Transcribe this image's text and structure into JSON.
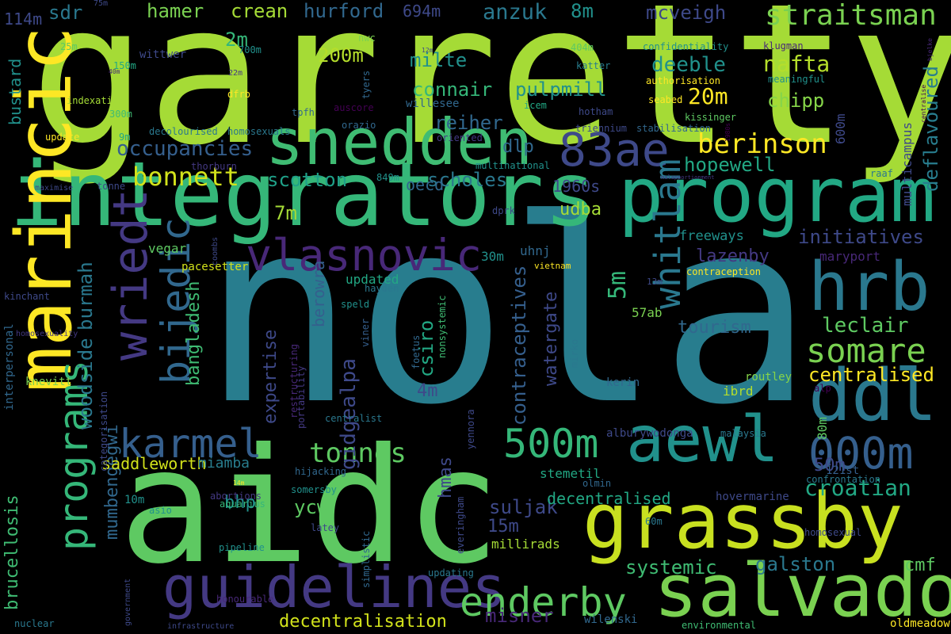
{
  "words": [
    {
      "text": "garretty",
      "color": "#a5db36"
    },
    {
      "text": "nola",
      "color": "#287d8e"
    },
    {
      "text": "aidc",
      "color": "#5ec962"
    },
    {
      "text": "integrators",
      "color": "#35b779"
    },
    {
      "text": "program",
      "color": "#22a884"
    },
    {
      "text": "marincic",
      "color": "#fde725"
    },
    {
      "text": "snedden",
      "color": "#3fbc73"
    },
    {
      "text": "grassby",
      "color": "#c8e020"
    },
    {
      "text": "salvado",
      "color": "#7ad151"
    },
    {
      "text": "hrb",
      "color": "#2a788e"
    },
    {
      "text": "ddl",
      "color": "#2a788e"
    },
    {
      "text": "aewl",
      "color": "#21918c"
    },
    {
      "text": "guidelines",
      "color": "#443983"
    },
    {
      "text": "enderby",
      "color": "#5ec962"
    },
    {
      "text": "83ae",
      "color": "#3e4989"
    },
    {
      "text": "vlasnovic",
      "color": "#482878"
    },
    {
      "text": "wriedt",
      "color": "#443983"
    },
    {
      "text": "bijedic",
      "color": "#31688e"
    },
    {
      "text": "programs",
      "color": "#35b779"
    },
    {
      "text": "karmel",
      "color": "#355f8d"
    },
    {
      "text": "500m",
      "color": "#35b779"
    },
    {
      "text": "000m",
      "color": "#355f8d"
    },
    {
      "text": "somare",
      "color": "#7ad151"
    },
    {
      "text": "whitlam",
      "color": "#2a788e"
    },
    {
      "text": "straitsman",
      "color": "#7ad151"
    },
    {
      "text": "berinson",
      "color": "#fde725"
    },
    {
      "text": "bonnett",
      "color": "#d2e21b"
    },
    {
      "text": "tonnes",
      "color": "#5ec962"
    },
    {
      "text": "croatian",
      "color": "#22a884"
    },
    {
      "text": "hurford",
      "color": "#31688e"
    },
    {
      "text": "hamer",
      "color": "#7ad151"
    },
    {
      "text": "crean",
      "color": "#a5db36"
    },
    {
      "text": "anzuk",
      "color": "#2a788e"
    },
    {
      "text": "sdr",
      "color": "#2a788e"
    },
    {
      "text": "114m",
      "color": "#3e4989"
    },
    {
      "text": "694m",
      "color": "#3e4989"
    },
    {
      "text": "8m",
      "color": "#21918c"
    },
    {
      "text": "mcveigh",
      "color": "#3e4989"
    },
    {
      "text": "2m",
      "color": "#35b779"
    },
    {
      "text": "200m",
      "color": "#b5de2b"
    },
    {
      "text": "milte",
      "color": "#21918c"
    },
    {
      "text": "deeble",
      "color": "#21918c"
    },
    {
      "text": "nafta",
      "color": "#b5de2b"
    },
    {
      "text": "chipp",
      "color": "#86d549"
    },
    {
      "text": "20m",
      "color": "#fde725"
    },
    {
      "text": "pulpmill",
      "color": "#21918c"
    },
    {
      "text": "connair",
      "color": "#35b779"
    },
    {
      "text": "reiher",
      "color": "#31688e"
    },
    {
      "text": "occupancies",
      "color": "#355f8d"
    },
    {
      "text": "dlp",
      "color": "#31688e"
    },
    {
      "text": "hopewell",
      "color": "#22a884"
    },
    {
      "text": "scotton",
      "color": "#1fa088"
    },
    {
      "text": "scholes",
      "color": "#2a788e"
    },
    {
      "text": "oecd",
      "color": "#31688e"
    },
    {
      "text": "1960s",
      "color": "#3e4989"
    },
    {
      "text": "udba",
      "color": "#a5db36"
    },
    {
      "text": "initiatives",
      "color": "#3e4989"
    },
    {
      "text": "deflavoured",
      "color": "#287d8e"
    },
    {
      "text": "lazenby",
      "color": "#443983"
    },
    {
      "text": "7m",
      "color": "#a5db36"
    },
    {
      "text": "5m",
      "color": "#35b779"
    },
    {
      "text": "leclair",
      "color": "#5ec962"
    },
    {
      "text": "tourism",
      "color": "#31688e"
    },
    {
      "text": "centralised",
      "color": "#fde725"
    },
    {
      "text": "bangladesh",
      "color": "#3fbc73"
    },
    {
      "text": "burmah",
      "color": "#2a788e"
    },
    {
      "text": "woodside",
      "color": "#2a788e"
    },
    {
      "text": "contraceptives",
      "color": "#355f8d"
    },
    {
      "text": "watergate",
      "color": "#3e4989"
    },
    {
      "text": "expertise",
      "color": "#3e4989"
    },
    {
      "text": "gidgealpa",
      "color": "#3e4989"
    },
    {
      "text": "csiro",
      "color": "#22a884"
    },
    {
      "text": "4m",
      "color": "#3e4989"
    },
    {
      "text": "mumbengegwi",
      "color": "#31688e"
    },
    {
      "text": "saddleworth",
      "color": "#d2e21b"
    },
    {
      "text": "miamba",
      "color": "#287d8e"
    },
    {
      "text": "hmas",
      "color": "#3e4989"
    },
    {
      "text": "ycw",
      "color": "#5ec962"
    },
    {
      "text": "bhp",
      "color": "#21918c"
    },
    {
      "text": "suljak",
      "color": "#3e4989"
    },
    {
      "text": "15m",
      "color": "#3e4989"
    },
    {
      "text": "decentralised",
      "color": "#22a884"
    },
    {
      "text": "50m",
      "color": "#3e4989"
    },
    {
      "text": "cmf",
      "color": "#5ec962"
    },
    {
      "text": "galston",
      "color": "#2a788e"
    },
    {
      "text": "systemic",
      "color": "#3fbc73"
    },
    {
      "text": "decentralisation",
      "color": "#d2e21b"
    },
    {
      "text": "misner",
      "color": "#482878"
    },
    {
      "text": "oldmeadow",
      "color": "#fde725"
    },
    {
      "text": "brucellosis",
      "color": "#3fbc73"
    },
    {
      "text": "bustard",
      "color": "#21918c"
    },
    {
      "text": "berowra",
      "color": "#355f8d"
    },
    {
      "text": "multicampus",
      "color": "#3e4989"
    },
    {
      "text": "600m",
      "color": "#3e4989"
    },
    {
      "text": "vegar",
      "color": "#5ec962"
    },
    {
      "text": "pacesetter",
      "color": "#d2e21b"
    },
    {
      "text": "freeways",
      "color": "#21918c"
    },
    {
      "text": "maryport",
      "color": "#482878"
    },
    {
      "text": "updated",
      "color": "#22a884"
    },
    {
      "text": "uhnj",
      "color": "#31688e"
    },
    {
      "text": "30m",
      "color": "#21918c"
    },
    {
      "text": "vietnam",
      "color": "#fde725"
    },
    {
      "text": "57ab",
      "color": "#7ad151"
    },
    {
      "text": "routley",
      "color": "#86d549"
    },
    {
      "text": "ibrd",
      "color": "#b5de2b"
    },
    {
      "text": "kerin",
      "color": "#31688e"
    },
    {
      "text": "alp",
      "color": "#440154"
    },
    {
      "text": "80m",
      "color": "#5ec962"
    },
    {
      "text": "121st",
      "color": "#355f8d"
    },
    {
      "text": "malaysia",
      "color": "#2a788e"
    },
    {
      "text": "alburywodonga",
      "color": "#3e4989"
    },
    {
      "text": "stemetil",
      "color": "#22a884"
    },
    {
      "text": "10m",
      "color": "#21918c"
    },
    {
      "text": "hovermarine",
      "color": "#3e4989"
    },
    {
      "text": "confrontation",
      "color": "#2a788e"
    },
    {
      "text": "millirads",
      "color": "#a5db36"
    },
    {
      "text": "interpersonal",
      "color": "#31688e"
    },
    {
      "text": "knevitt",
      "color": "#7ad151"
    },
    {
      "text": "homosexuality",
      "color": "#443983"
    },
    {
      "text": "kinchant",
      "color": "#3e4989"
    },
    {
      "text": "categorisation",
      "color": "#3e4989"
    },
    {
      "text": "update",
      "color": "#fde725"
    },
    {
      "text": "9m",
      "color": "#22a884"
    },
    {
      "text": "300m",
      "color": "#3fbc73"
    },
    {
      "text": "indexation",
      "color": "#a5db36"
    },
    {
      "text": "dfrb",
      "color": "#fde725"
    },
    {
      "text": "decolourised",
      "color": "#2a788e"
    },
    {
      "text": "homosexuals",
      "color": "#2a788e"
    },
    {
      "text": "thorburn",
      "color": "#443983"
    },
    {
      "text": "tonne",
      "color": "#3e4989"
    },
    {
      "text": "maximise",
      "color": "#3e4989"
    },
    {
      "text": "849m",
      "color": "#21918c"
    },
    {
      "text": "multinational",
      "color": "#21918c"
    },
    {
      "text": "tpfh",
      "color": "#31688e"
    },
    {
      "text": "auscore",
      "color": "#440154"
    },
    {
      "text": "tyers",
      "color": "#31688e"
    },
    {
      "text": "orazio",
      "color": "#31688e"
    },
    {
      "text": "oriented",
      "color": "#443983"
    },
    {
      "text": "willesee",
      "color": "#31688e"
    },
    {
      "text": "icem",
      "color": "#22a884"
    },
    {
      "text": "hotham",
      "color": "#3e4989"
    },
    {
      "text": "triennium",
      "color": "#3e4989"
    },
    {
      "text": "stabilisation",
      "color": "#31688e"
    },
    {
      "text": "kissinger",
      "color": "#5ec962"
    },
    {
      "text": "seabed",
      "color": "#fde725"
    },
    {
      "text": "authorisation",
      "color": "#fde725"
    },
    {
      "text": "meaningful",
      "color": "#21918c"
    },
    {
      "text": "confidentiality",
      "color": "#21918c"
    },
    {
      "text": "klugman",
      "color": "#482878"
    },
    {
      "text": "katter",
      "color": "#287d8e"
    },
    {
      "text": "404m",
      "color": "#5ec962"
    },
    {
      "text": "12m",
      "color": "#3e4989"
    },
    {
      "text": "700m",
      "color": "#21918c"
    },
    {
      "text": "nwc",
      "color": "#7ad151"
    },
    {
      "text": "150m",
      "color": "#22a884"
    },
    {
      "text": "40m",
      "color": "#482878"
    },
    {
      "text": "22m",
      "color": "#443983"
    },
    {
      "text": "wittwer",
      "color": "#3e4989"
    },
    {
      "text": "25m",
      "color": "#5ec962"
    },
    {
      "text": "75m",
      "color": "#3e4989"
    },
    {
      "text": "13m",
      "color": "#3e4989"
    },
    {
      "text": "dprk",
      "color": "#3e4989"
    },
    {
      "text": "coombs",
      "color": "#3e4989"
    },
    {
      "text": "contraception",
      "color": "#fde725"
    },
    {
      "text": "malapportionment",
      "color": "#443983"
    },
    {
      "text": "raaf",
      "color": "#2a788e"
    },
    {
      "text": "1980s",
      "color": "#440154"
    },
    {
      "text": "centralise",
      "color": "#440154"
    },
    {
      "text": "hayden",
      "color": "#2a788e"
    },
    {
      "text": "speld",
      "color": "#21918c"
    },
    {
      "text": "nonsystemic",
      "color": "#3fbc73"
    },
    {
      "text": "foetus",
      "color": "#31688e"
    },
    {
      "text": "viner",
      "color": "#355f8d"
    },
    {
      "text": "restructuring",
      "color": "#482878"
    },
    {
      "text": "portability",
      "color": "#443983"
    },
    {
      "text": "mirko",
      "color": "#2a788e"
    },
    {
      "text": "centralist",
      "color": "#2a788e"
    },
    {
      "text": "yennora",
      "color": "#3e4989"
    },
    {
      "text": "hijacking",
      "color": "#31688e"
    },
    {
      "text": "somersby",
      "color": "#21918c"
    },
    {
      "text": "abortions",
      "color": "#443983"
    },
    {
      "text": "aquarius",
      "color": "#35b779"
    },
    {
      "text": "14m",
      "color": "#fde725"
    },
    {
      "text": "asio",
      "color": "#21918c"
    },
    {
      "text": "olmin",
      "color": "#31688e"
    },
    {
      "text": "latey",
      "color": "#3e4989"
    },
    {
      "text": "pipeline",
      "color": "#21918c"
    },
    {
      "text": "simplistic",
      "color": "#31688e"
    },
    {
      "text": "everingham",
      "color": "#3e4989"
    },
    {
      "text": "updating",
      "color": "#2a788e"
    },
    {
      "text": "60m",
      "color": "#2a788e"
    },
    {
      "text": "homosexual",
      "color": "#3e4989"
    },
    {
      "text": "honourable",
      "color": "#482878"
    },
    {
      "text": "government",
      "color": "#3e4989"
    },
    {
      "text": "wilenski",
      "color": "#31688e"
    },
    {
      "text": "nuclear",
      "color": "#2a788e"
    },
    {
      "text": "infrastructure",
      "color": "#3e4989"
    },
    {
      "text": "environmental",
      "color": "#3fbc73"
    },
    {
      "text": "bjelke",
      "color": "#482878"
    }
  ]
}
